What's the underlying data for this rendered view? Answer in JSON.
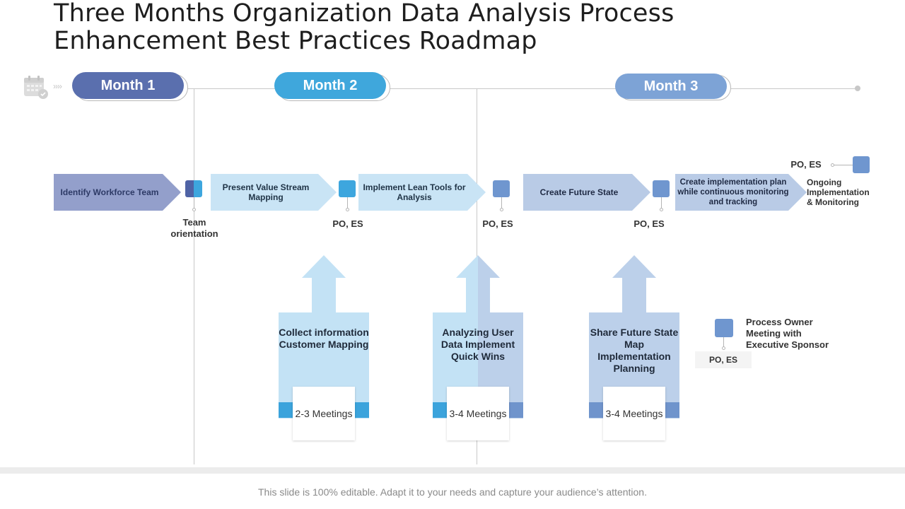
{
  "title": "Three Months Organization Data Analysis Process Enhancement Best Practices Roadmap",
  "months": [
    "Month 1",
    "Month 2",
    "Month 3"
  ],
  "steps": [
    "Identify Workforce Team",
    "Present Value Stream Mapping",
    "Implement Lean Tools for Analysis",
    "Create Future State",
    "Create implementation plan while continuous monitoring and tracking"
  ],
  "milestones": {
    "team_orientation": "Team orientation",
    "po_es": "PO, ES",
    "ongoing": "Ongoing Implementation & Monitoring"
  },
  "activities": [
    {
      "title": "Collect information Customer Mapping",
      "meetings": "2-3 Meetings"
    },
    {
      "title": "Analyzing User Data Implement Quick Wins",
      "meetings": "3-4 Meetings"
    },
    {
      "title": "Share Future State Map Implementation Planning",
      "meetings": "3-4 Meetings"
    }
  ],
  "legend": {
    "text": "Process Owner Meeting with Executive Sponsor",
    "code": "PO, ES"
  },
  "footer": "This slide is 100% editable. Adapt it to your needs and capture your audience’s attention.",
  "colors": {
    "month1": "#5a6fae",
    "month2": "#3fa7dc",
    "month3": "#7da3d6",
    "chevron_purple": "#939fcb",
    "chevron_light": "#c9e4f5",
    "chevron_lavender": "#b9cbe6",
    "arrow_light": "#c3e2f5",
    "arrow_mid": "#bcd0ea",
    "band_blue": "#3ba3dc",
    "band_steel": "#6f94cc",
    "square_blue": "#3da6de",
    "square_steel": "#6f96cf",
    "square_navy": "#4f63a5"
  }
}
